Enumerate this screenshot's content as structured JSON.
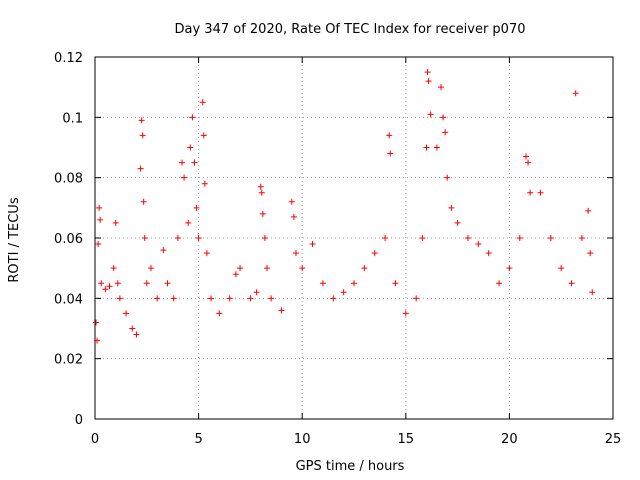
{
  "chart_data": {
    "type": "scatter",
    "title": "Day 347 of 2020, Rate Of TEC Index for receiver p070",
    "xlabel": "GPS time / hours",
    "ylabel": "ROTI / TECUs",
    "xlim": [
      0,
      25
    ],
    "ylim": [
      0,
      0.12
    ],
    "x_ticks": [
      "0",
      "5",
      "10",
      "15",
      "20",
      "25"
    ],
    "y_ticks": [
      "0",
      "0.02",
      "0.04",
      "0.06",
      "0.08",
      "0.1",
      "0.12"
    ],
    "grid": true,
    "marker": "+",
    "color": "#ff0000",
    "series": [
      {
        "name": "",
        "points": [
          [
            0.05,
            0.032
          ],
          [
            0.1,
            0.026
          ],
          [
            0.15,
            0.058
          ],
          [
            0.2,
            0.07
          ],
          [
            0.25,
            0.066
          ],
          [
            0.3,
            0.045
          ],
          [
            0.5,
            0.043
          ],
          [
            0.7,
            0.044
          ],
          [
            0.9,
            0.05
          ],
          [
            1.0,
            0.065
          ],
          [
            1.1,
            0.045
          ],
          [
            1.2,
            0.04
          ],
          [
            1.5,
            0.035
          ],
          [
            1.8,
            0.03
          ],
          [
            2.0,
            0.028
          ],
          [
            2.2,
            0.083
          ],
          [
            2.25,
            0.099
          ],
          [
            2.3,
            0.094
          ],
          [
            2.35,
            0.072
          ],
          [
            2.4,
            0.06
          ],
          [
            2.5,
            0.045
          ],
          [
            2.7,
            0.05
          ],
          [
            3.0,
            0.04
          ],
          [
            3.3,
            0.056
          ],
          [
            3.5,
            0.045
          ],
          [
            3.8,
            0.04
          ],
          [
            4.0,
            0.06
          ],
          [
            4.2,
            0.085
          ],
          [
            4.3,
            0.08
          ],
          [
            4.5,
            0.065
          ],
          [
            4.6,
            0.09
          ],
          [
            4.7,
            0.1
          ],
          [
            4.8,
            0.085
          ],
          [
            4.9,
            0.07
          ],
          [
            5.0,
            0.06
          ],
          [
            5.2,
            0.105
          ],
          [
            5.25,
            0.094
          ],
          [
            5.3,
            0.078
          ],
          [
            5.4,
            0.055
          ],
          [
            5.6,
            0.04
          ],
          [
            6.0,
            0.035
          ],
          [
            6.5,
            0.04
          ],
          [
            6.8,
            0.048
          ],
          [
            7.0,
            0.05
          ],
          [
            7.5,
            0.04
          ],
          [
            7.8,
            0.042
          ],
          [
            8.0,
            0.077
          ],
          [
            8.05,
            0.075
          ],
          [
            8.1,
            0.068
          ],
          [
            8.2,
            0.06
          ],
          [
            8.3,
            0.05
          ],
          [
            8.5,
            0.04
          ],
          [
            9.0,
            0.036
          ],
          [
            9.5,
            0.072
          ],
          [
            9.6,
            0.067
          ],
          [
            9.7,
            0.055
          ],
          [
            10.0,
            0.05
          ],
          [
            10.5,
            0.058
          ],
          [
            11.0,
            0.045
          ],
          [
            11.5,
            0.04
          ],
          [
            12.0,
            0.042
          ],
          [
            12.5,
            0.045
          ],
          [
            13.0,
            0.05
          ],
          [
            13.5,
            0.055
          ],
          [
            14.0,
            0.06
          ],
          [
            14.2,
            0.094
          ],
          [
            14.25,
            0.088
          ],
          [
            14.5,
            0.045
          ],
          [
            15.0,
            0.035
          ],
          [
            15.5,
            0.04
          ],
          [
            15.8,
            0.06
          ],
          [
            16.0,
            0.09
          ],
          [
            16.05,
            0.115
          ],
          [
            16.1,
            0.112
          ],
          [
            16.2,
            0.101
          ],
          [
            16.5,
            0.09
          ],
          [
            16.7,
            0.11
          ],
          [
            16.8,
            0.1
          ],
          [
            16.9,
            0.095
          ],
          [
            17.0,
            0.08
          ],
          [
            17.2,
            0.07
          ],
          [
            17.5,
            0.065
          ],
          [
            18.0,
            0.06
          ],
          [
            18.5,
            0.058
          ],
          [
            19.0,
            0.055
          ],
          [
            19.5,
            0.045
          ],
          [
            20.0,
            0.05
          ],
          [
            20.5,
            0.06
          ],
          [
            20.8,
            0.087
          ],
          [
            20.9,
            0.085
          ],
          [
            21.0,
            0.075
          ],
          [
            21.5,
            0.075
          ],
          [
            22.0,
            0.06
          ],
          [
            22.5,
            0.05
          ],
          [
            23.0,
            0.045
          ],
          [
            23.2,
            0.108
          ],
          [
            23.5,
            0.06
          ],
          [
            23.8,
            0.069
          ],
          [
            23.9,
            0.055
          ],
          [
            24.0,
            0.042
          ]
        ]
      }
    ]
  }
}
